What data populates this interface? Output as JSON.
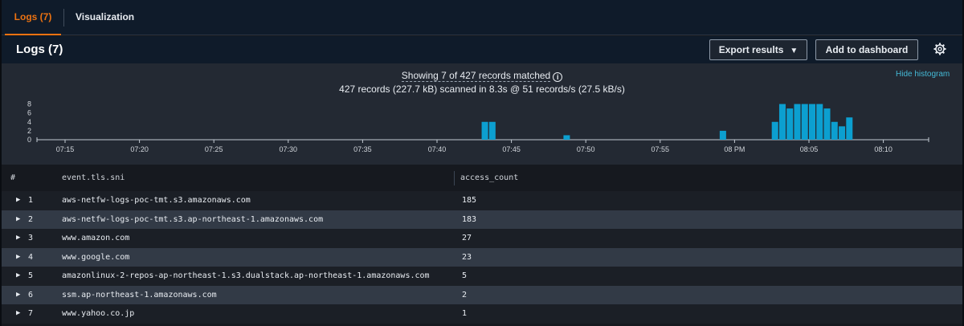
{
  "tabs": {
    "logs": "Logs (7)",
    "visualization": "Visualization"
  },
  "header": {
    "title": "Logs (7)",
    "export_label": "Export results",
    "add_dashboard_label": "Add to dashboard"
  },
  "histogram": {
    "summary_line1": "Showing 7 of 427 records matched",
    "summary_line2": "427 records (227.7 kB) scanned in 8.3s @ 51 records/s (27.5 kB/s)",
    "hide_label": "Hide histogram"
  },
  "chart_data": {
    "type": "bar",
    "y_ticks": [
      0,
      2,
      4,
      6,
      8
    ],
    "ylim": [
      0,
      9
    ],
    "x_tick_labels": [
      "07:15",
      "07:20",
      "07:25",
      "07:30",
      "07:35",
      "07:40",
      "07:45",
      "07:50",
      "07:55",
      "08 PM",
      "08:05",
      "08:10"
    ],
    "bins": [
      {
        "t": "07:43",
        "value": 4
      },
      {
        "t": "07:43.5",
        "value": 4
      },
      {
        "t": "07:48.5",
        "value": 1
      },
      {
        "t": "07:59",
        "value": 2
      },
      {
        "t": "08:02.5",
        "value": 4
      },
      {
        "t": "08:03",
        "value": 8
      },
      {
        "t": "08:03.5",
        "value": 7
      },
      {
        "t": "08:04",
        "value": 8
      },
      {
        "t": "08:04.5",
        "value": 8
      },
      {
        "t": "08:05",
        "value": 8
      },
      {
        "t": "08:05.5",
        "value": 8
      },
      {
        "t": "08:06",
        "value": 7
      },
      {
        "t": "08:06.5",
        "value": 4
      },
      {
        "t": "08:07",
        "value": 3
      },
      {
        "t": "08:07.5",
        "value": 5
      }
    ],
    "color": "#0c9fd0"
  },
  "table": {
    "columns": [
      "#",
      "event.tls.sni",
      "access_count"
    ],
    "rows": [
      {
        "n": "1",
        "sni": "aws-netfw-logs-poc-tmt.s3.amazonaws.com",
        "count": "185"
      },
      {
        "n": "2",
        "sni": "aws-netfw-logs-poc-tmt.s3.ap-northeast-1.amazonaws.com",
        "count": "183"
      },
      {
        "n": "3",
        "sni": "www.amazon.com",
        "count": "27"
      },
      {
        "n": "4",
        "sni": "www.google.com",
        "count": "23"
      },
      {
        "n": "5",
        "sni": "amazonlinux-2-repos-ap-northeast-1.s3.dualstack.ap-northeast-1.amazonaws.com",
        "count": "5"
      },
      {
        "n": "6",
        "sni": "ssm.ap-northeast-1.amazonaws.com",
        "count": "2"
      },
      {
        "n": "7",
        "sni": "www.yahoo.co.jp",
        "count": "1"
      }
    ]
  }
}
